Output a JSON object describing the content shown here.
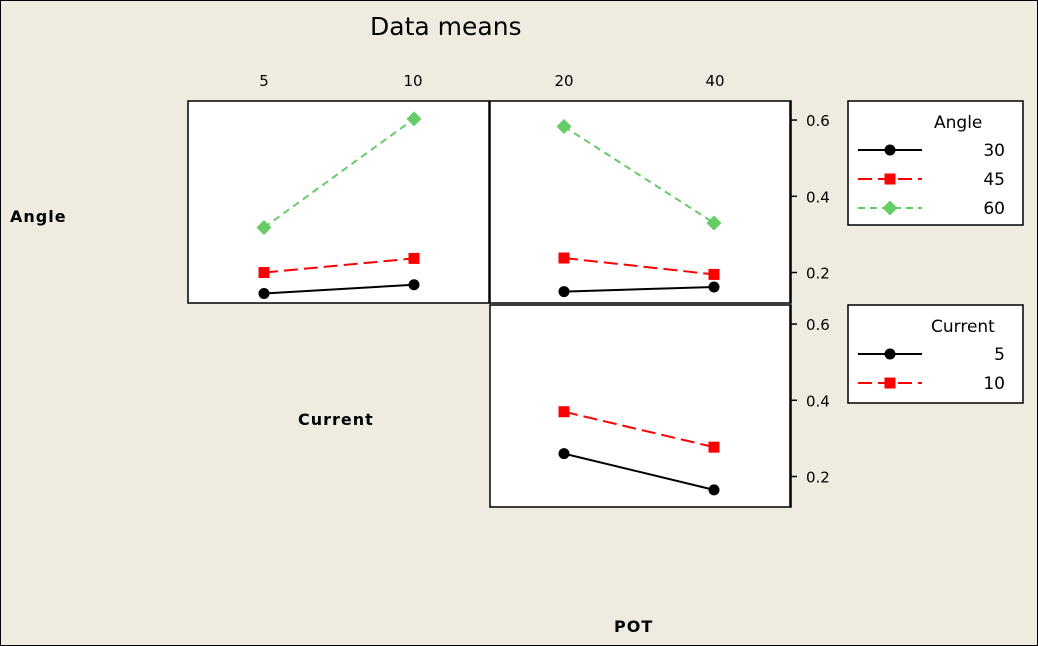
{
  "chart_data": {
    "type": "line",
    "title": "Data means",
    "factors": [
      "Angle",
      "Current",
      "POT"
    ],
    "x_tick_labels": {
      "Current": [
        "5",
        "10"
      ],
      "POT": [
        "20",
        "40"
      ]
    },
    "y_ticks": [
      "0.2",
      "0.4",
      "0.6"
    ],
    "ylim": [
      0.12,
      0.65
    ],
    "panels": [
      {
        "name": "Angle by Current",
        "x": [
          5,
          10
        ],
        "series": [
          {
            "name": "30",
            "values": [
              0.145,
              0.168
            ]
          },
          {
            "name": "45",
            "values": [
              0.2,
              0.237
            ]
          },
          {
            "name": "60",
            "values": [
              0.318,
              0.603
            ]
          }
        ]
      },
      {
        "name": "Angle by POT",
        "x": [
          20,
          40
        ],
        "series": [
          {
            "name": "30",
            "values": [
              0.15,
              0.162
            ]
          },
          {
            "name": "45",
            "values": [
              0.238,
              0.195
            ]
          },
          {
            "name": "60",
            "values": [
              0.583,
              0.33
            ]
          }
        ]
      },
      {
        "name": "Current by POT",
        "x": [
          20,
          40
        ],
        "series": [
          {
            "name": "5",
            "values": [
              0.26,
              0.165
            ]
          },
          {
            "name": "10",
            "values": [
              0.37,
              0.277
            ]
          }
        ]
      }
    ],
    "legends": [
      {
        "title": "Angle",
        "entries": [
          {
            "label": "30",
            "color": "#000000",
            "marker": "circle",
            "dash": "solid"
          },
          {
            "label": "45",
            "color": "#ff0000",
            "marker": "square",
            "dash": "dashed"
          },
          {
            "label": "60",
            "color": "#66cc66",
            "marker": "diamond",
            "dash": "dotted-dash"
          }
        ]
      },
      {
        "title": "Current",
        "entries": [
          {
            "label": "5",
            "color": "#000000",
            "marker": "circle",
            "dash": "solid"
          },
          {
            "label": "10",
            "color": "#ff0000",
            "marker": "square",
            "dash": "dashed"
          }
        ]
      }
    ],
    "background_color": "#efebe1",
    "panel_color": "#ffffff"
  }
}
